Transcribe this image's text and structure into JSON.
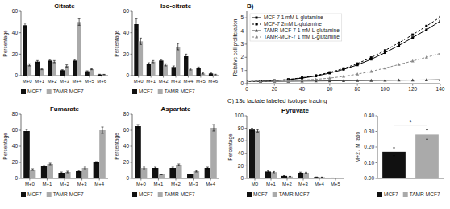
{
  "chart_data": [
    {
      "type": "bar",
      "title": "Citrate",
      "ylabel": "Percentage",
      "categories": [
        "M+0",
        "M+1",
        "M+2",
        "M+3",
        "M+4",
        "M+5",
        "M+6"
      ],
      "series": [
        {
          "name": "MCF7",
          "color": "#111111",
          "values": [
            47,
            13,
            14,
            5,
            14,
            4,
            1
          ],
          "errors": [
            2,
            1,
            1,
            0.5,
            1,
            0.5,
            0.3
          ]
        },
        {
          "name": "TAMR-MCF7",
          "color": "#aaaaaa",
          "values": [
            10,
            6,
            13,
            9,
            50,
            6,
            1
          ],
          "errors": [
            1,
            0.5,
            1,
            1,
            3,
            0.5,
            0.2
          ]
        }
      ],
      "ylim": [
        0,
        60
      ],
      "yticks": [
        0,
        20,
        40,
        60
      ],
      "grid": false,
      "legend": "bottom"
    },
    {
      "type": "bar",
      "title": "Iso-citrate",
      "ylabel": "Percentage",
      "categories": [
        "M+0",
        "M+1",
        "M+2",
        "M+3",
        "M+4",
        "M+5",
        "M+6"
      ],
      "series": [
        {
          "name": "MCF7",
          "color": "#111111",
          "values": [
            48,
            11,
            14,
            8,
            18,
            7,
            2
          ],
          "errors": [
            5,
            1,
            1,
            1,
            2,
            1,
            0.4
          ]
        },
        {
          "name": "TAMR-MCF7",
          "color": "#aaaaaa",
          "values": [
            32,
            13,
            10,
            27,
            6,
            2,
            1
          ],
          "errors": [
            3,
            1,
            1,
            3,
            0.8,
            0.5,
            0.3
          ]
        }
      ],
      "ylim": [
        0,
        60
      ],
      "yticks": [
        0,
        20,
        40,
        60
      ],
      "grid": false,
      "legend": "bottom"
    },
    {
      "type": "bar",
      "title": "Fumarate",
      "ylabel": "Percentage",
      "categories": [
        "M+0",
        "M+1",
        "M+2",
        "M+3",
        "M+4"
      ],
      "series": [
        {
          "name": "MCF7",
          "color": "#111111",
          "values": [
            59,
            15,
            7,
            9,
            20
          ],
          "errors": [
            2,
            1,
            1,
            1,
            1
          ]
        },
        {
          "name": "TAMR-MCF7",
          "color": "#aaaaaa",
          "values": [
            11,
            18,
            8,
            13,
            60
          ],
          "errors": [
            1,
            1,
            1,
            1,
            4
          ]
        }
      ],
      "ylim": [
        0,
        80
      ],
      "yticks": [
        0,
        20,
        40,
        60,
        80
      ],
      "grid": false,
      "legend": "bottom"
    },
    {
      "type": "bar",
      "title": "Aspartate",
      "ylabel": "Percentage",
      "categories": [
        "M+0",
        "M+1",
        "M+2",
        "M+3",
        "M+4"
      ],
      "series": [
        {
          "name": "MCF7",
          "color": "#111111",
          "values": [
            65,
            13,
            13,
            5,
            13
          ],
          "errors": [
            2,
            1,
            1,
            0.5,
            1
          ]
        },
        {
          "name": "TAMR-MCF7",
          "color": "#aaaaaa",
          "values": [
            13,
            5,
            17,
            9,
            63
          ],
          "errors": [
            1,
            0.5,
            1,
            1,
            4
          ]
        }
      ],
      "ylim": [
        0,
        80
      ],
      "yticks": [
        0,
        20,
        40,
        60,
        80
      ],
      "grid": false,
      "legend": "bottom"
    },
    {
      "type": "line",
      "title": "B)",
      "ylabel": "Relative cell proliferation",
      "x": [
        0,
        10,
        20,
        30,
        40,
        50,
        60,
        70,
        80,
        90,
        100,
        110,
        120,
        130,
        140
      ],
      "series": [
        {
          "name": "MCF-7 1 mM L-glutamine",
          "color": "#000000",
          "line_style": "solid",
          "marker": "square",
          "values": [
            0.15,
            0.18,
            0.22,
            0.3,
            0.42,
            0.58,
            0.8,
            1.08,
            1.42,
            1.85,
            2.35,
            2.9,
            3.5,
            4.1,
            4.75
          ]
        },
        {
          "name": "MCF-7 2mM L-glutamine",
          "color": "#000000",
          "line_style": "dashed",
          "marker": "square",
          "values": [
            0.15,
            0.18,
            0.24,
            0.32,
            0.45,
            0.62,
            0.85,
            1.15,
            1.52,
            1.98,
            2.52,
            3.1,
            3.72,
            4.38,
            5.05
          ]
        },
        {
          "name": "TAMR-MCF-7 1 mM L-glutamine",
          "color": "#444444",
          "line_style": "solid",
          "marker": "triangle",
          "values": [
            0.15,
            0.16,
            0.17,
            0.18,
            0.19,
            0.2,
            0.21,
            0.22,
            0.23,
            0.24,
            0.25,
            0.26,
            0.27,
            0.28,
            0.3
          ]
        },
        {
          "name": "TAMR-MCF-7 1 mM L-glutamine",
          "color": "#888888",
          "line_style": "dashed",
          "marker": "triangle",
          "values": [
            0.15,
            0.17,
            0.19,
            0.22,
            0.27,
            0.33,
            0.42,
            0.55,
            0.72,
            0.93,
            1.18,
            1.45,
            1.72,
            2.0,
            2.3
          ]
        }
      ],
      "xlim": [
        0,
        140
      ],
      "xticks": [
        0,
        20,
        40,
        60,
        80,
        100,
        120,
        140
      ],
      "ylim": [
        0,
        5.5
      ],
      "yticks": [
        0,
        1,
        2,
        3,
        4,
        5
      ],
      "grid": false,
      "legend": "upper left",
      "annotation": "C) 13c lactate labeled isotope tracing"
    },
    {
      "type": "bar",
      "title": "Pyruvate",
      "ylabel": "Percentage",
      "categories": [
        "M0",
        "M+1",
        "M+2",
        "M+3",
        "M+4",
        "M+5"
      ],
      "series": [
        {
          "name": "MCF7",
          "color": "#111111",
          "values": [
            78,
            11,
            4,
            9,
            2,
            0.5
          ],
          "errors": [
            2,
            1,
            0.5,
            1,
            0.3,
            0.2
          ]
        },
        {
          "name": "TAMR-MCF7",
          "color": "#aaaaaa",
          "values": [
            76,
            10,
            3,
            9,
            2,
            0.5
          ],
          "errors": [
            2,
            1,
            0.3,
            0.8,
            0.2,
            0.1
          ]
        }
      ],
      "ylim": [
        0,
        100
      ],
      "yticks": [
        0,
        20,
        40,
        60,
        80,
        100
      ],
      "grid": false,
      "legend": "bottom"
    },
    {
      "type": "bar",
      "ylabel": "M+2 / M ratio",
      "categories": [
        null,
        null
      ],
      "series": [
        {
          "name": "MCF7",
          "color": "#111111",
          "values": [
            0.17,
            null
          ],
          "errors": [
            0.025,
            null
          ]
        },
        {
          "name": "TAMR-MCF7",
          "color": "#aaaaaa",
          "values": [
            null,
            0.28
          ],
          "errors": [
            null,
            0.03
          ]
        }
      ],
      "ylim": [
        0,
        0.4
      ],
      "yticks": [
        {
          "value": 0.0,
          "label": "0.00"
        },
        {
          "value": 0.1,
          "label": "0.10"
        },
        {
          "value": 0.2,
          "label": "0.20"
        },
        {
          "value": 0.3,
          "label": "0.30"
        },
        {
          "value": 0.4,
          "label": "0.40"
        }
      ],
      "tick_labels": "y",
      "grid": false,
      "legend": "bottom",
      "annotation": "*"
    }
  ]
}
